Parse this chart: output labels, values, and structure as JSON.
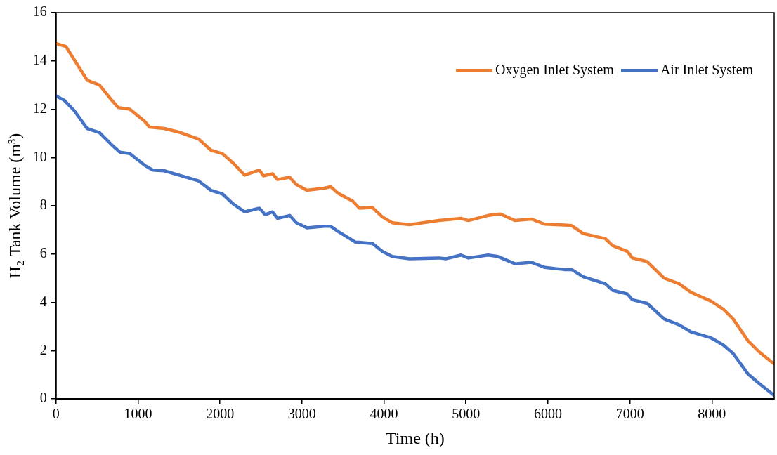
{
  "chart_data": {
    "type": "line",
    "xlabel": "Time (h)",
    "ylabel": "H₂ Tank Volume (m³)",
    "xlim": [
      0,
      8760
    ],
    "xticks": [
      0,
      1000,
      2000,
      3000,
      4000,
      5000,
      6000,
      7000,
      8000
    ],
    "ylim": [
      0,
      16
    ],
    "yticks": [
      0,
      2,
      4,
      6,
      8,
      10,
      12,
      14,
      16
    ],
    "grid": false,
    "legend": "top right",
    "marker": "none",
    "line_style": "solid",
    "series": [
      {
        "name": "Oxygen Inlet System",
        "color": "#ed7d31",
        "x": [
          0,
          120,
          250,
          380,
          530,
          680,
          760,
          900,
          1080,
          1140,
          1320,
          1500,
          1740,
          1890,
          2030,
          2160,
          2300,
          2480,
          2530,
          2640,
          2700,
          2850,
          2930,
          3060,
          3270,
          3350,
          3440,
          3620,
          3700,
          3860,
          3980,
          4100,
          4310,
          4670,
          4940,
          5030,
          5270,
          5420,
          5600,
          5800,
          5960,
          6200,
          6290,
          6430,
          6700,
          6790,
          6970,
          7030,
          7210,
          7420,
          7600,
          7750,
          7990,
          8140,
          8260,
          8440,
          8580,
          8760
        ],
        "values": [
          14.72,
          14.6,
          13.9,
          13.2,
          13.0,
          12.37,
          12.07,
          12.0,
          11.5,
          11.26,
          11.2,
          11.05,
          10.76,
          10.3,
          10.16,
          9.77,
          9.27,
          9.48,
          9.24,
          9.33,
          9.09,
          9.18,
          8.88,
          8.64,
          8.73,
          8.79,
          8.52,
          8.19,
          7.9,
          7.93,
          7.54,
          7.3,
          7.22,
          7.39,
          7.48,
          7.39,
          7.6,
          7.66,
          7.39,
          7.45,
          7.24,
          7.2,
          7.18,
          6.85,
          6.64,
          6.35,
          6.11,
          5.84,
          5.69,
          5.0,
          4.77,
          4.41,
          4.05,
          3.72,
          3.31,
          2.41,
          1.94,
          1.45
        ]
      },
      {
        "name": "Air Inlet System",
        "color": "#4472c4",
        "x": [
          0,
          100,
          220,
          380,
          530,
          680,
          780,
          900,
          1080,
          1180,
          1320,
          1500,
          1740,
          1890,
          2030,
          2160,
          2300,
          2480,
          2550,
          2640,
          2700,
          2850,
          2930,
          3060,
          3270,
          3350,
          3440,
          3650,
          3860,
          3980,
          4100,
          4310,
          4670,
          4760,
          4940,
          5030,
          5270,
          5390,
          5600,
          5800,
          5960,
          6200,
          6290,
          6430,
          6700,
          6790,
          6970,
          7030,
          7210,
          7420,
          7600,
          7750,
          7990,
          8140,
          8260,
          8440,
          8580,
          8760
        ],
        "values": [
          12.55,
          12.37,
          11.95,
          11.2,
          11.03,
          10.52,
          10.22,
          10.16,
          9.68,
          9.48,
          9.45,
          9.27,
          9.03,
          8.64,
          8.49,
          8.08,
          7.75,
          7.9,
          7.63,
          7.75,
          7.48,
          7.6,
          7.3,
          7.09,
          7.15,
          7.15,
          6.94,
          6.5,
          6.44,
          6.11,
          5.9,
          5.81,
          5.84,
          5.81,
          5.96,
          5.84,
          5.96,
          5.9,
          5.6,
          5.66,
          5.45,
          5.36,
          5.36,
          5.06,
          4.77,
          4.5,
          4.35,
          4.11,
          3.96,
          3.31,
          3.07,
          2.77,
          2.53,
          2.23,
          1.88,
          1.04,
          0.63,
          0.15
        ]
      }
    ]
  }
}
